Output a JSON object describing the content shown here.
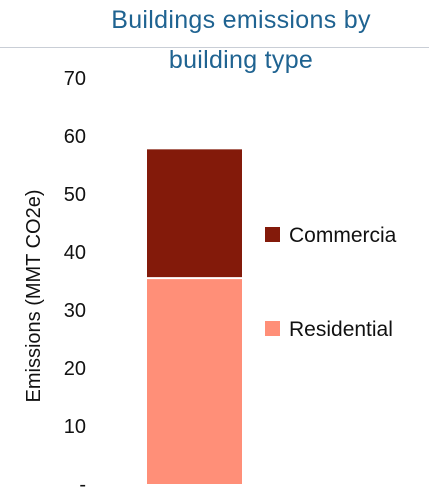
{
  "chart_data": {
    "type": "bar",
    "stacked": true,
    "title": [
      "Buildings emissions by",
      "building type"
    ],
    "title_color": "#1f6391",
    "ylabel": "Emissions (MMT CO2e)",
    "ylim": [
      0,
      70
    ],
    "yticks": [
      0,
      10,
      20,
      30,
      40,
      50,
      60,
      70
    ],
    "ytick_labels": [
      "-",
      "10",
      "20",
      "30",
      "40",
      "50",
      "60",
      "70"
    ],
    "grid": false,
    "legend_position": "right",
    "categories": [
      ""
    ],
    "series": [
      {
        "name": "Residential",
        "values": [
          35.5
        ],
        "color": "#ff8f78"
      },
      {
        "name": "Commercia",
        "values": [
          22.2
        ],
        "color": "#831a0a"
      }
    ],
    "legend_order": [
      "Commercia",
      "Residential"
    ]
  }
}
